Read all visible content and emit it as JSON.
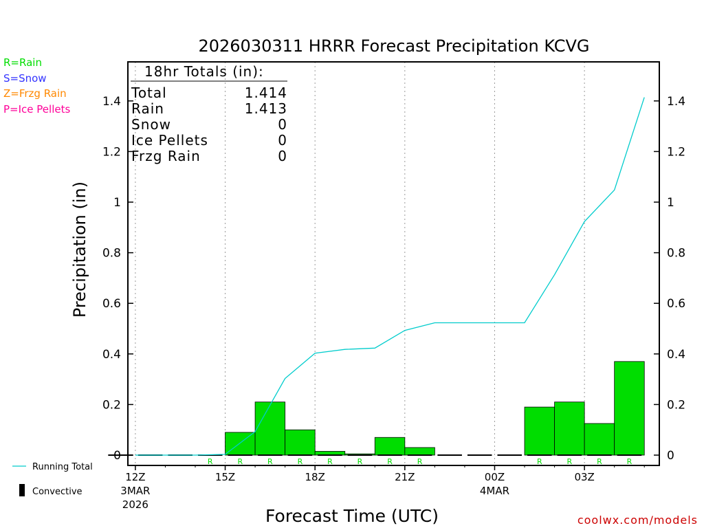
{
  "chart_data": {
    "type": "bar",
    "title": "2026030311 HRRR Forecast Precipitation KCVG",
    "xlabel": "Forecast Time (UTC)",
    "ylabel": "Precipitation (in)",
    "ylim": [
      0,
      1.55
    ],
    "yticks": [
      0,
      0.2,
      0.4,
      0.6,
      0.8,
      1,
      1.2,
      1.4
    ],
    "ytick_labels": [
      "0",
      "0.2",
      "0.4",
      "0.6",
      "0.8",
      "1",
      "1.2",
      "1.4"
    ],
    "x_hours": [
      12,
      13,
      14,
      15,
      16,
      17,
      18,
      19,
      20,
      21,
      22,
      23,
      24,
      25,
      26,
      27,
      28,
      29
    ],
    "xlim": [
      11.75,
      29.5
    ],
    "xticks": [
      {
        "hour": 12,
        "label": "12Z",
        "sub1": "3MAR",
        "sub2": "2026"
      },
      {
        "hour": 15,
        "label": "15Z",
        "sub1": "",
        "sub2": ""
      },
      {
        "hour": 18,
        "label": "18Z",
        "sub1": "",
        "sub2": ""
      },
      {
        "hour": 21,
        "label": "21Z",
        "sub1": "",
        "sub2": ""
      },
      {
        "hour": 24,
        "label": "00Z",
        "sub1": "4MAR",
        "sub2": ""
      },
      {
        "hour": 27,
        "label": "03Z",
        "sub1": "",
        "sub2": ""
      }
    ],
    "hourly_precip": [
      0,
      0,
      0,
      0,
      0.09,
      0.21,
      0.1,
      0.015,
      0.005,
      0.07,
      0.03,
      0,
      0,
      0,
      0.19,
      0.21,
      0.125,
      0.37
    ],
    "precip_type": [
      "",
      "",
      "",
      "R",
      "R",
      "R",
      "R",
      "R",
      "R",
      "R",
      "R",
      "",
      "",
      "",
      "R",
      "R",
      "R",
      "R"
    ],
    "series": [
      {
        "name": "Running Total",
        "values": [
          0,
          0,
          0,
          0.003,
          0.093,
          0.303,
          0.403,
          0.418,
          0.423,
          0.493,
          0.523,
          0.523,
          0.523,
          0.523,
          0.713,
          0.923,
          1.048,
          1.414
        ]
      }
    ],
    "grid": "vertical-dotted",
    "colors": {
      "bar": "#00dd00",
      "running_total": "#00cccc",
      "rain": "#00dd00",
      "snow": "#3333ff",
      "frzg": "#ff8800",
      "ice": "#ff0099"
    }
  },
  "totals_box": {
    "heading": "18hr Totals (in):",
    "rows": [
      {
        "label": "Total",
        "value": "1.414"
      },
      {
        "label": "Rain",
        "value": "1.413"
      },
      {
        "label": "Snow",
        "value": "0"
      },
      {
        "label": "Ice Pellets",
        "value": "0"
      },
      {
        "label": "Frzg Rain",
        "value": "0"
      }
    ]
  },
  "type_legend": [
    "R=Rain",
    "S=Snow",
    "Z=Frzg Rain",
    "P=Ice Pellets"
  ],
  "line_legend": {
    "running_total": "Running Total",
    "convective": "Convective"
  },
  "credit": "coolwx.com/models"
}
